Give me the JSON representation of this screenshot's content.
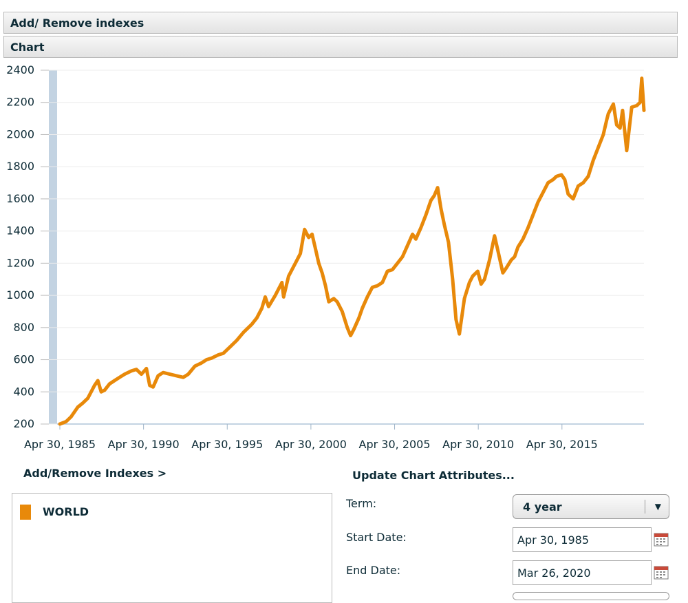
{
  "header": {
    "add_remove_title": "Add/ Remove indexes",
    "chart_title": "Chart"
  },
  "chart_data": {
    "type": "line",
    "title": "",
    "xlabel": "",
    "ylabel": "",
    "ylim": [
      200,
      2400
    ],
    "yticks": [
      200,
      400,
      600,
      800,
      1000,
      1200,
      1400,
      1600,
      1800,
      2000,
      2200,
      2400
    ],
    "xlim": [
      1985.33,
      2020.23
    ],
    "xtick_labels": [
      "Apr 30, 1985",
      "Apr 30, 1990",
      "Apr 30, 1995",
      "Apr 30, 2000",
      "Apr 30, 2005",
      "Apr 30, 2010",
      "Apr 30, 2015"
    ],
    "x_unit": "year",
    "grid": true,
    "legend": "none",
    "series": [
      {
        "name": "WORLD",
        "color": "#e8890a",
        "x": [
          1985.33,
          1985.7,
          1986.0,
          1986.4,
          1986.7,
          1987.0,
          1987.4,
          1987.6,
          1987.8,
          1988.0,
          1988.3,
          1988.6,
          1988.9,
          1989.2,
          1989.6,
          1989.9,
          1990.2,
          1990.5,
          1990.7,
          1990.9,
          1991.2,
          1991.5,
          1991.9,
          1992.3,
          1992.7,
          1993.0,
          1993.4,
          1993.8,
          1994.1,
          1994.4,
          1994.8,
          1995.1,
          1995.5,
          1995.9,
          1996.3,
          1996.8,
          1997.1,
          1997.4,
          1997.6,
          1997.8,
          1998.2,
          1998.6,
          1998.7,
          1999.0,
          1999.4,
          1999.7,
          1999.95,
          2000.2,
          2000.4,
          2000.6,
          2000.8,
          2001.0,
          2001.2,
          2001.4,
          2001.7,
          2001.9,
          2002.2,
          2002.5,
          2002.7,
          2002.9,
          2003.2,
          2003.4,
          2003.7,
          2004.0,
          2004.3,
          2004.6,
          2004.9,
          2005.2,
          2005.5,
          2005.8,
          2006.1,
          2006.4,
          2006.6,
          2006.9,
          2007.2,
          2007.5,
          2007.7,
          2007.9,
          2008.1,
          2008.3,
          2008.55,
          2008.8,
          2009.0,
          2009.2,
          2009.5,
          2009.8,
          2010.0,
          2010.3,
          2010.5,
          2010.7,
          2011.0,
          2011.3,
          2011.5,
          2011.8,
          2012.0,
          2012.3,
          2012.5,
          2012.7,
          2013.0,
          2013.3,
          2013.6,
          2013.9,
          2014.2,
          2014.5,
          2014.8,
          2015.0,
          2015.3,
          2015.5,
          2015.7,
          2016.0,
          2016.3,
          2016.6,
          2016.9,
          2017.2,
          2017.5,
          2017.8,
          2018.0,
          2018.1,
          2018.4,
          2018.6,
          2018.8,
          2018.95,
          2019.2,
          2019.5,
          2019.8,
          2020.0,
          2020.1,
          2020.23
        ],
        "y": [
          200,
          215,
          245,
          305,
          330,
          360,
          440,
          470,
          400,
          410,
          450,
          470,
          490,
          510,
          530,
          540,
          510,
          545,
          440,
          430,
          500,
          520,
          510,
          500,
          490,
          510,
          560,
          580,
          600,
          610,
          630,
          640,
          680,
          720,
          770,
          820,
          860,
          920,
          990,
          930,
          1000,
          1080,
          990,
          1120,
          1200,
          1260,
          1410,
          1360,
          1380,
          1290,
          1200,
          1140,
          1060,
          960,
          980,
          960,
          900,
          800,
          750,
          790,
          860,
          920,
          990,
          1050,
          1060,
          1080,
          1150,
          1160,
          1200,
          1240,
          1310,
          1380,
          1350,
          1420,
          1500,
          1590,
          1620,
          1670,
          1540,
          1440,
          1330,
          1100,
          850,
          760,
          980,
          1080,
          1120,
          1150,
          1070,
          1100,
          1220,
          1370,
          1280,
          1140,
          1170,
          1220,
          1240,
          1300,
          1350,
          1420,
          1500,
          1580,
          1640,
          1700,
          1720,
          1740,
          1750,
          1720,
          1630,
          1600,
          1680,
          1700,
          1740,
          1840,
          1920,
          2000,
          2090,
          2130,
          2190,
          2060,
          2040,
          2150,
          1900,
          2170,
          2180,
          2200,
          2350,
          2150
        ]
      }
    ]
  },
  "links": {
    "add_remove_indexes": "Add/Remove Indexes >",
    "update_chart": "Update Chart Attributes..."
  },
  "legend": {
    "color": "#e8890a",
    "label": "WORLD"
  },
  "form": {
    "term_label": "Term:",
    "term_value": "4 year",
    "start_label": "Start Date:",
    "start_value": "Apr 30, 1985",
    "end_label": "End Date:",
    "end_value": "Mar 26, 2020"
  }
}
